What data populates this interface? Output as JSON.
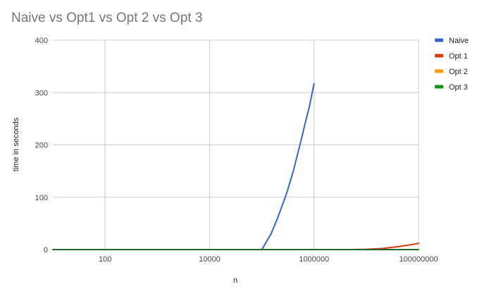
{
  "chart_data": {
    "type": "line",
    "title": "Naive vs Opt1 vs Opt 2 vs Opt 3",
    "xlabel": "n",
    "ylabel": "time in seconds",
    "x_scale": "log10",
    "xlim": [
      10,
      100000000
    ],
    "ylim": [
      0,
      400
    ],
    "x_ticks": [
      100,
      10000,
      1000000,
      100000000
    ],
    "x_tick_labels": [
      "100",
      "10000",
      "1000000",
      "100000000"
    ],
    "y_ticks": [
      0,
      100,
      200,
      300,
      400
    ],
    "y_tick_labels": [
      "0",
      "100",
      "200",
      "300",
      "400"
    ],
    "grid": true,
    "legend_position": "right",
    "series": [
      {
        "name": "Naive",
        "color": "#3366cc",
        "x": [
          10,
          100000,
          150000,
          200000,
          300000,
          400000,
          500000,
          600000,
          700000,
          800000,
          1000000
        ],
        "y": [
          0,
          0,
          30,
          60,
          108,
          150,
          188,
          220,
          248,
          270,
          317
        ]
      },
      {
        "name": "Opt 1",
        "color": "#dc3912",
        "x": [
          10,
          5000000,
          10000000,
          20000000,
          40000000,
          70000000,
          100000000
        ],
        "y": [
          0,
          0,
          0.5,
          2,
          5.5,
          9,
          12
        ]
      },
      {
        "name": "Opt 2",
        "color": "#ff9900",
        "x": [
          10,
          100000000
        ],
        "y": [
          0,
          0
        ]
      },
      {
        "name": "Opt 3",
        "color": "#109618",
        "x": [
          10,
          100000000
        ],
        "y": [
          0,
          0
        ]
      }
    ]
  }
}
